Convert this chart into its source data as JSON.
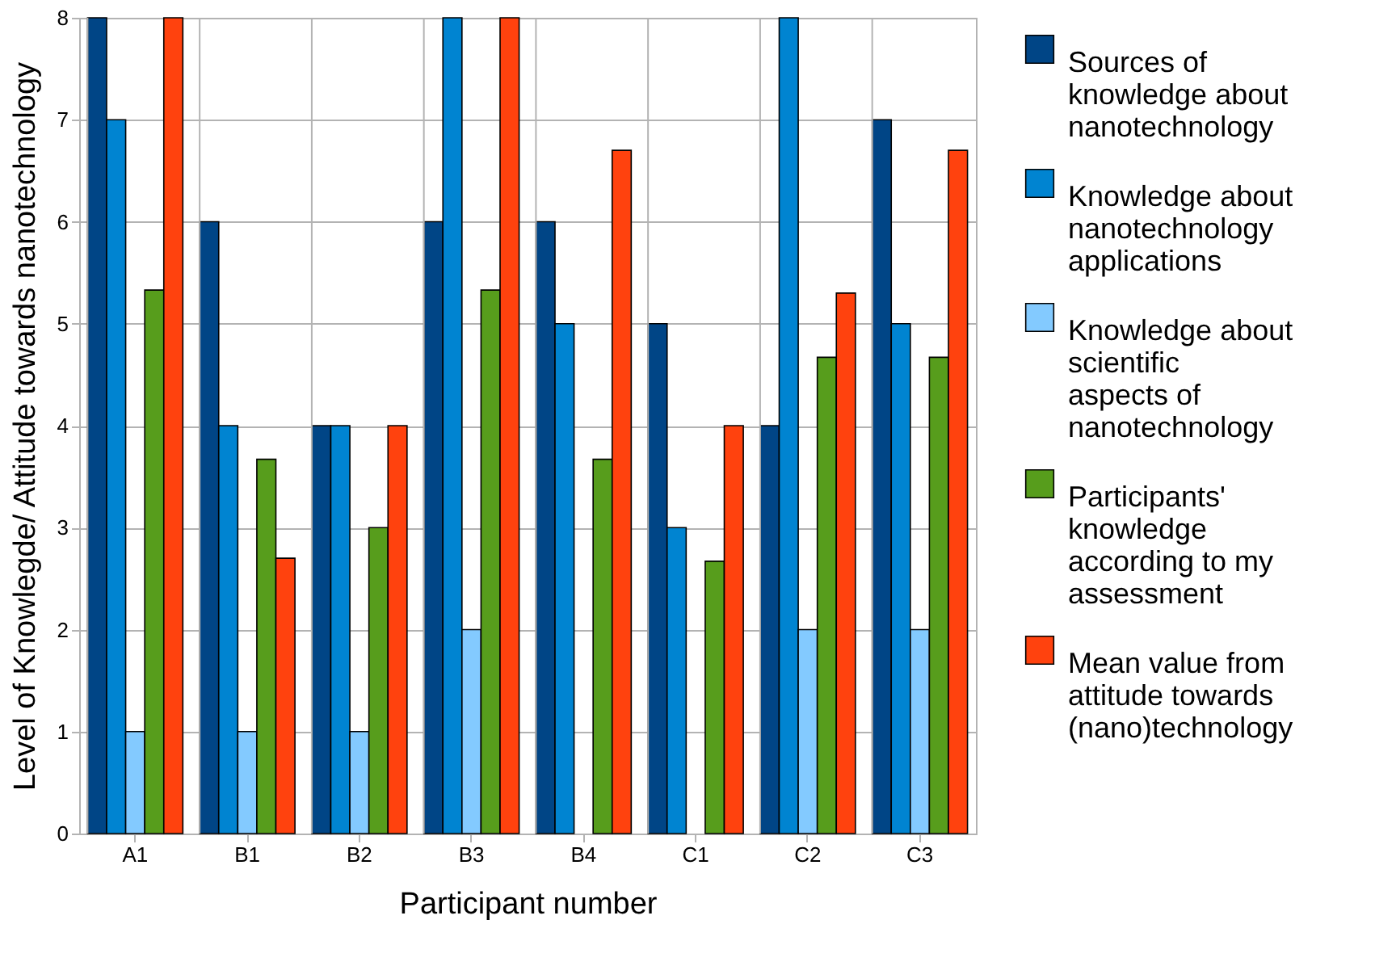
{
  "chart_data": {
    "type": "bar",
    "xlabel": "Participant number",
    "ylabel": "Level of Knowlegde/ Attitude towards nanotechnology",
    "categories": [
      "A1",
      "B1",
      "B2",
      "B3",
      "B4",
      "C1",
      "C2",
      "C3"
    ],
    "series": [
      {
        "name": "Sources of knowledge about nanotechnology",
        "color": "#004586",
        "values": [
          8,
          6,
          4,
          6,
          6,
          5,
          4,
          7
        ]
      },
      {
        "name": "Knowledge about nanotechnology applications",
        "color": "#0084d1",
        "values": [
          7,
          4,
          4,
          8,
          5,
          3,
          8,
          5
        ]
      },
      {
        "name": "Knowledge about scientific aspects of nanotechnology",
        "color": "#83caff",
        "values": [
          1,
          1,
          1,
          2,
          null,
          null,
          2,
          2
        ]
      },
      {
        "name": "Participants' knowledge according to my assessment",
        "color": "#579d1c",
        "values": [
          5.33,
          3.67,
          3,
          5.33,
          3.67,
          2.67,
          4.67,
          4.67
        ]
      },
      {
        "name": "Mean value from attitude towards (nano)technology",
        "color": "#ff420e",
        "values": [
          8,
          2.7,
          4,
          8,
          6.7,
          4,
          5.3,
          6.7
        ]
      }
    ],
    "ylim": [
      0,
      8
    ],
    "yticks": [
      0,
      1,
      2,
      3,
      4,
      5,
      6,
      7,
      8
    ],
    "grid": true,
    "legend": "right"
  }
}
